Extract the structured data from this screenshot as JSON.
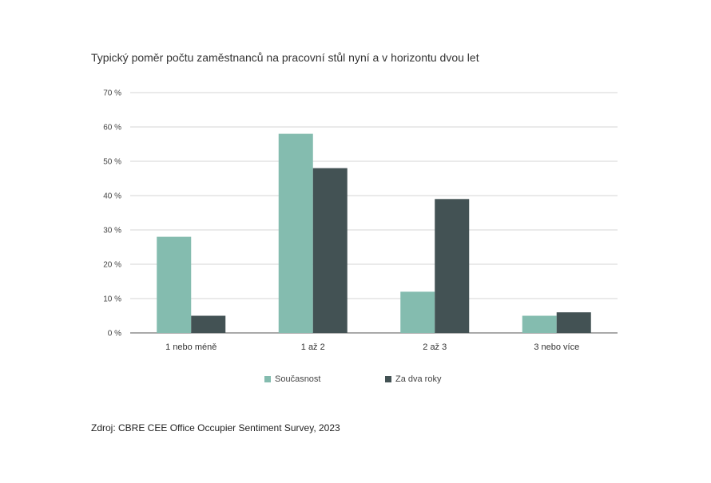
{
  "chart_data": {
    "type": "bar",
    "title": "Typický poměr počtu zaměstnanců na pracovní stůl nyní a v horizontu dvou let",
    "xlabel": "",
    "ylabel": "",
    "categories": [
      "1 nebo méně",
      "1 až 2",
      "2 až 3",
      "3 nebo více"
    ],
    "series": [
      {
        "name": "Současnost",
        "values": [
          28,
          58,
          12,
          5
        ],
        "color": "#84bcaf"
      },
      {
        "name": "Za dva roky",
        "values": [
          5,
          48,
          39,
          6
        ],
        "color": "#435254"
      }
    ],
    "ylim": [
      0,
      70
    ],
    "yticks": [
      0,
      10,
      20,
      30,
      40,
      50,
      60,
      70
    ],
    "ytick_labels": [
      "0 %",
      "10 %",
      "20 %",
      "30 %",
      "40 %",
      "50 %",
      "60 %",
      "70 %"
    ],
    "grid": true,
    "legend_position": "bottom-center"
  },
  "source": "Zdroj: CBRE  CEE Office Occupier Sentiment  Survey, 2023"
}
